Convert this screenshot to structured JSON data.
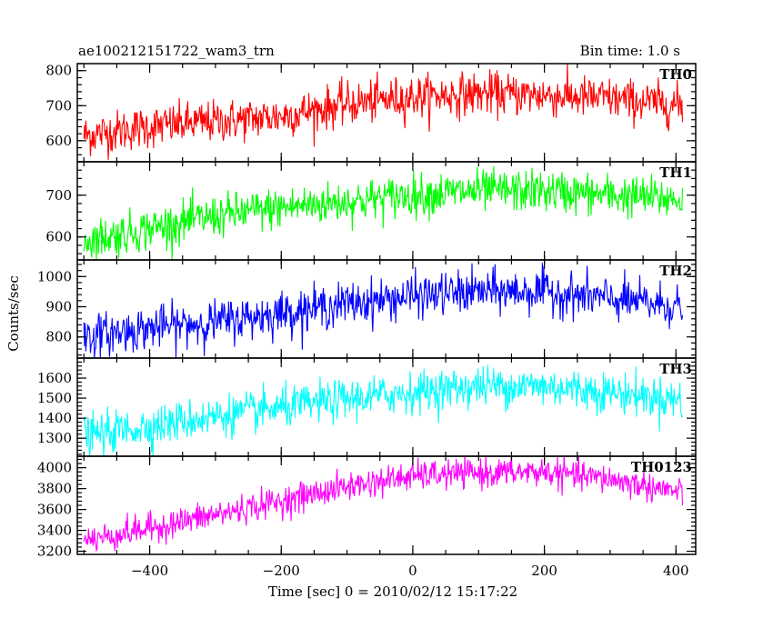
{
  "header": {
    "title": "ae100212151722_wam3_trn",
    "bin_time": "Bin time: 1.0 s"
  },
  "chart_data": {
    "type": "line",
    "title": "ae100212151722_wam3_trn",
    "subtitle": "Bin time: 1.0 s",
    "xlabel": "Time [sec] 0 = 2010/02/12 15:17:22",
    "ylabel": "Counts/sec",
    "xlim": [
      -510,
      430
    ],
    "x_range": [
      -500,
      410
    ],
    "xticks": [
      -400,
      -200,
      0,
      200,
      400
    ],
    "grid": false,
    "panels": [
      {
        "name": "TH0",
        "color": "#ff0000",
        "ylim": [
          540,
          820
        ],
        "yticks": [
          600,
          700,
          800
        ],
        "trend": [
          [
            -500,
            615
          ],
          [
            -400,
            640
          ],
          [
            -300,
            655
          ],
          [
            -200,
            670
          ],
          [
            -100,
            705
          ],
          [
            0,
            725
          ],
          [
            100,
            735
          ],
          [
            200,
            730
          ],
          [
            300,
            720
          ],
          [
            410,
            700
          ]
        ],
        "noise_sd": 30
      },
      {
        "name": "TH1",
        "color": "#00ff00",
        "ylim": [
          545,
          780
        ],
        "yticks": [
          600,
          700
        ],
        "trend": [
          [
            -500,
            590
          ],
          [
            -400,
            620
          ],
          [
            -300,
            650
          ],
          [
            -200,
            670
          ],
          [
            -100,
            685
          ],
          [
            0,
            700
          ],
          [
            100,
            710
          ],
          [
            200,
            710
          ],
          [
            300,
            700
          ],
          [
            410,
            690
          ]
        ],
        "noise_sd": 25
      },
      {
        "name": "TH2",
        "color": "#0000ff",
        "ylim": [
          730,
          1055
        ],
        "yticks": [
          800,
          900,
          1000
        ],
        "trend": [
          [
            -500,
            800
          ],
          [
            -400,
            830
          ],
          [
            -300,
            850
          ],
          [
            -200,
            880
          ],
          [
            -100,
            910
          ],
          [
            0,
            935
          ],
          [
            100,
            950
          ],
          [
            200,
            950
          ],
          [
            300,
            925
          ],
          [
            410,
            900
          ]
        ],
        "noise_sd": 35
      },
      {
        "name": "TH3",
        "color": "#00ffff",
        "ylim": [
          1210,
          1700
        ],
        "yticks": [
          1300,
          1400,
          1500,
          1600
        ],
        "trend": [
          [
            -500,
            1310
          ],
          [
            -400,
            1360
          ],
          [
            -300,
            1410
          ],
          [
            -200,
            1450
          ],
          [
            -100,
            1495
          ],
          [
            0,
            1530
          ],
          [
            100,
            1560
          ],
          [
            200,
            1560
          ],
          [
            300,
            1530
          ],
          [
            410,
            1490
          ]
        ],
        "noise_sd": 50
      },
      {
        "name": "TH0123",
        "color": "#ff00ff",
        "ylim": [
          3170,
          4110
        ],
        "yticks": [
          3200,
          3400,
          3600,
          3800,
          4000
        ],
        "trend": [
          [
            -500,
            3300
          ],
          [
            -400,
            3420
          ],
          [
            -300,
            3550
          ],
          [
            -200,
            3680
          ],
          [
            -100,
            3820
          ],
          [
            0,
            3920
          ],
          [
            100,
            3950
          ],
          [
            200,
            3960
          ],
          [
            300,
            3890
          ],
          [
            410,
            3760
          ]
        ],
        "noise_sd": 70
      }
    ]
  }
}
